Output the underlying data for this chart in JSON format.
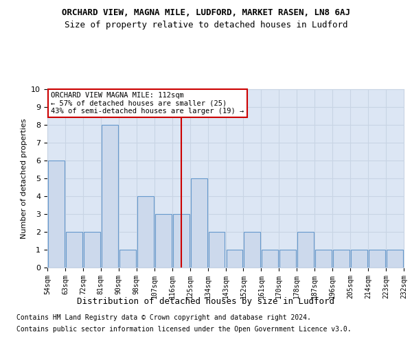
{
  "title": "ORCHARD VIEW, MAGNA MILE, LUDFORD, MARKET RASEN, LN8 6AJ",
  "subtitle": "Size of property relative to detached houses in Ludford",
  "xlabel": "Distribution of detached houses by size in Ludford",
  "ylabel": "Number of detached properties",
  "categories": [
    "54sqm",
    "63sqm",
    "72sqm",
    "81sqm",
    "90sqm",
    "98sqm",
    "107sqm",
    "116sqm",
    "125sqm",
    "134sqm",
    "143sqm",
    "152sqm",
    "161sqm",
    "170sqm",
    "178sqm",
    "187sqm",
    "196sqm",
    "205sqm",
    "214sqm",
    "223sqm",
    "232sqm"
  ],
  "values": [
    6,
    2,
    2,
    8,
    1,
    4,
    3,
    3,
    5,
    2,
    1,
    2,
    1,
    1,
    2,
    1,
    1,
    1,
    1,
    1
  ],
  "bar_color": "#ccd9ec",
  "bar_edge_color": "#6699cc",
  "vline_color": "#cc0000",
  "ylim": [
    0,
    10
  ],
  "yticks": [
    0,
    1,
    2,
    3,
    4,
    5,
    6,
    7,
    8,
    9,
    10
  ],
  "annotation_title": "ORCHARD VIEW MAGNA MILE: 112sqm",
  "annotation_line1": "← 57% of detached houses are smaller (25)",
  "annotation_line2": "43% of semi-detached houses are larger (19) →",
  "grid_color": "#c8d4e4",
  "plot_bg_color": "#dce6f4",
  "footer1": "Contains HM Land Registry data © Crown copyright and database right 2024.",
  "footer2": "Contains public sector information licensed under the Open Government Licence v3.0.",
  "title_fontsize": 9,
  "subtitle_fontsize": 9,
  "xlabel_fontsize": 9,
  "ylabel_fontsize": 8,
  "tick_fontsize": 7,
  "footer_fontsize": 7
}
